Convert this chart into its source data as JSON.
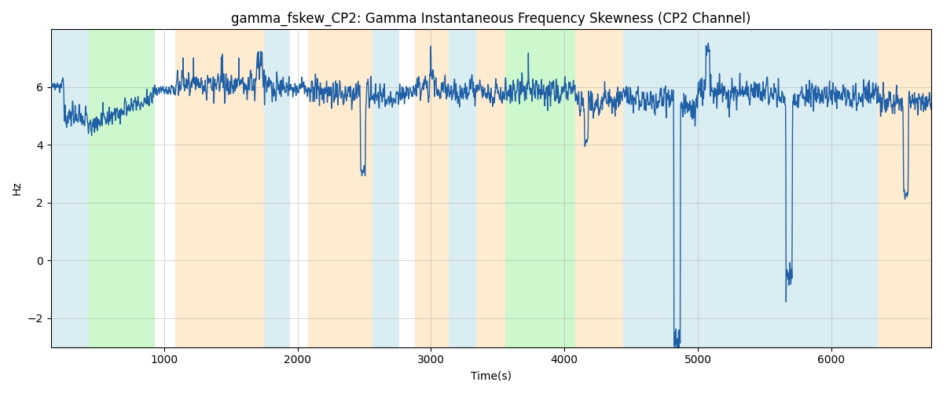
{
  "title": "gamma_fskew_CP2: Gamma Instantaneous Frequency Skewness (CP2 Channel)",
  "xlabel": "Time(s)",
  "ylabel": "Hz",
  "xlim": [
    150,
    6750
  ],
  "ylim": [
    -3,
    8
  ],
  "yticks": [
    -2,
    0,
    2,
    4,
    6
  ],
  "xticks": [
    1000,
    2000,
    3000,
    4000,
    5000,
    6000
  ],
  "bg_bands": [
    {
      "xmin": 150,
      "xmax": 430,
      "color": "#add8e6",
      "alpha": 0.45
    },
    {
      "xmin": 430,
      "xmax": 930,
      "color": "#90ee90",
      "alpha": 0.45
    },
    {
      "xmin": 1080,
      "xmax": 1750,
      "color": "#ffd9a0",
      "alpha": 0.5
    },
    {
      "xmin": 1750,
      "xmax": 1940,
      "color": "#add8e6",
      "alpha": 0.45
    },
    {
      "xmin": 2080,
      "xmax": 2560,
      "color": "#ffd9a0",
      "alpha": 0.5
    },
    {
      "xmin": 2560,
      "xmax": 2760,
      "color": "#add8e6",
      "alpha": 0.45
    },
    {
      "xmin": 2880,
      "xmax": 3130,
      "color": "#ffd9a0",
      "alpha": 0.5
    },
    {
      "xmin": 3130,
      "xmax": 3340,
      "color": "#add8e6",
      "alpha": 0.45
    },
    {
      "xmin": 3340,
      "xmax": 3560,
      "color": "#ffd9a0",
      "alpha": 0.5
    },
    {
      "xmin": 3560,
      "xmax": 4080,
      "color": "#90ee90",
      "alpha": 0.45
    },
    {
      "xmin": 4080,
      "xmax": 4440,
      "color": "#ffd9a0",
      "alpha": 0.5
    },
    {
      "xmin": 4440,
      "xmax": 6350,
      "color": "#add8e6",
      "alpha": 0.45
    },
    {
      "xmin": 6350,
      "xmax": 6750,
      "color": "#ffd9a0",
      "alpha": 0.5
    }
  ],
  "line_color": "#1f5fa6",
  "line_width": 1.0,
  "figsize": [
    12,
    5
  ],
  "dpi": 100
}
